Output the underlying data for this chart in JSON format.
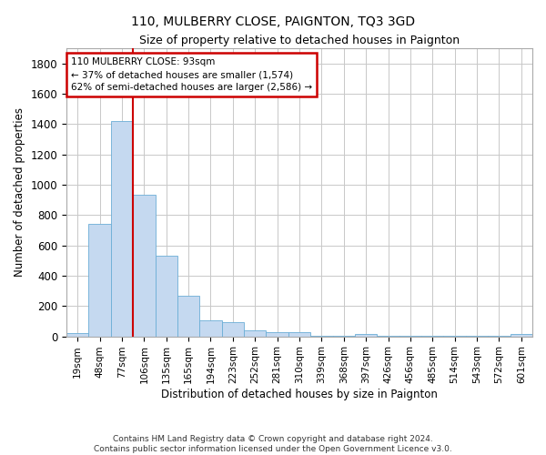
{
  "title": "110, MULBERRY CLOSE, PAIGNTON, TQ3 3GD",
  "subtitle": "Size of property relative to detached houses in Paignton",
  "xlabel": "Distribution of detached houses by size in Paignton",
  "ylabel": "Number of detached properties",
  "bar_color": "#c5d9f0",
  "bar_edge_color": "#6baed6",
  "categories": [
    "19sqm",
    "48sqm",
    "77sqm",
    "106sqm",
    "135sqm",
    "165sqm",
    "194sqm",
    "223sqm",
    "252sqm",
    "281sqm",
    "310sqm",
    "339sqm",
    "368sqm",
    "397sqm",
    "426sqm",
    "456sqm",
    "485sqm",
    "514sqm",
    "543sqm",
    "572sqm",
    "601sqm"
  ],
  "values": [
    22,
    740,
    1420,
    935,
    530,
    265,
    103,
    93,
    40,
    27,
    25,
    5,
    5,
    15,
    3,
    3,
    3,
    3,
    3,
    3,
    15
  ],
  "ylim": [
    0,
    1900
  ],
  "yticks": [
    0,
    200,
    400,
    600,
    800,
    1000,
    1200,
    1400,
    1600,
    1800
  ],
  "vline_x_index": 2,
  "annotation_title": "110 MULBERRY CLOSE: 93sqm",
  "annotation_line1": "← 37% of detached houses are smaller (1,574)",
  "annotation_line2": "62% of semi-detached houses are larger (2,586) →",
  "annotation_box_color": "#ffffff",
  "annotation_border_color": "#cc0000",
  "vline_color": "#cc0000",
  "footer": "Contains HM Land Registry data © Crown copyright and database right 2024.\nContains public sector information licensed under the Open Government Licence v3.0.",
  "grid_color": "#c8c8c8",
  "background_color": "#ffffff"
}
